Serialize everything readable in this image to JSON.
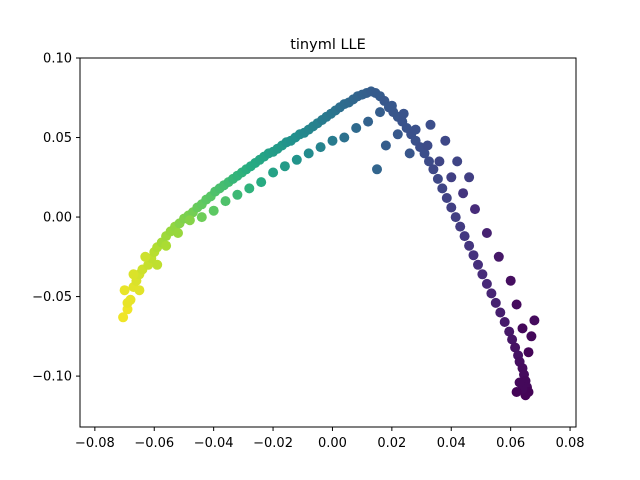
{
  "chart_data": {
    "type": "scatter",
    "title": "tinyml LLE",
    "xlabel": "",
    "ylabel": "",
    "xlim": [
      -0.085,
      0.082
    ],
    "ylim": [
      -0.132,
      0.1
    ],
    "xticks": [
      -0.08,
      -0.06,
      -0.04,
      -0.02,
      0.0,
      0.02,
      0.04,
      0.06,
      0.08
    ],
    "xtick_labels": [
      "−0.08",
      "−0.06",
      "−0.04",
      "−0.02",
      "0.00",
      "0.02",
      "0.04",
      "0.06",
      "0.08"
    ],
    "yticks": [
      0.1,
      0.05,
      0.0,
      -0.05,
      -0.1
    ],
    "ytick_labels": [
      "0.10",
      "0.05",
      "0.00",
      "−0.05",
      "−0.10"
    ],
    "grid": false,
    "legend": "none",
    "colormap": "viridis",
    "x": [
      -0.0705,
      -0.069,
      -0.068,
      -0.07,
      -0.067,
      -0.066,
      -0.065,
      -0.064,
      -0.062,
      -0.061,
      -0.06,
      -0.059,
      -0.0575,
      -0.056,
      -0.0545,
      -0.053,
      -0.0515,
      -0.05,
      -0.0485,
      -0.047,
      -0.0455,
      -0.044,
      -0.0425,
      -0.041,
      -0.0395,
      -0.038,
      -0.0365,
      -0.035,
      -0.0335,
      -0.032,
      -0.0305,
      -0.029,
      -0.0275,
      -0.026,
      -0.0245,
      -0.023,
      -0.0215,
      -0.02,
      -0.0185,
      -0.017,
      -0.0155,
      -0.014,
      -0.0125,
      -0.011,
      -0.0095,
      -0.008,
      -0.0065,
      -0.005,
      -0.0035,
      -0.002,
      -0.0005,
      0.001,
      0.0025,
      0.004,
      0.0055,
      0.007,
      0.0085,
      0.01,
      0.0115,
      0.013,
      0.0145,
      0.016,
      0.0175,
      0.019,
      0.0205,
      0.022,
      0.0235,
      0.025,
      0.0265,
      0.028,
      0.0295,
      0.031,
      0.0325,
      0.034,
      0.0355,
      0.037,
      0.0385,
      0.04,
      0.0415,
      0.043,
      0.0445,
      0.046,
      0.0475,
      0.049,
      0.0505,
      0.052,
      0.0535,
      0.055,
      0.0565,
      0.058,
      0.0595,
      0.0605,
      0.0615,
      0.0625,
      0.063,
      0.064,
      0.0645,
      0.065,
      0.0655,
      0.066,
      0.065,
      0.064,
      0.063,
      0.062,
      -0.069,
      -0.067,
      -0.065,
      -0.063,
      -0.059,
      -0.056,
      -0.052,
      -0.048,
      -0.044,
      -0.04,
      -0.036,
      -0.032,
      -0.028,
      -0.024,
      -0.02,
      -0.016,
      -0.012,
      -0.008,
      -0.004,
      0.0,
      0.004,
      0.008,
      0.012,
      0.016,
      0.02,
      0.024,
      0.028,
      0.032,
      0.036,
      0.04,
      0.044,
      0.048,
      0.052,
      0.056,
      0.06,
      0.062,
      0.064,
      0.066,
      0.067,
      0.068,
      0.015,
      0.018,
      0.022,
      0.026,
      0.033,
      0.038,
      0.042,
      0.046
    ],
    "y": [
      -0.063,
      -0.058,
      -0.052,
      -0.046,
      -0.044,
      -0.04,
      -0.036,
      -0.033,
      -0.03,
      -0.026,
      -0.022,
      -0.019,
      -0.016,
      -0.012,
      -0.009,
      -0.006,
      -0.004,
      -0.001,
      0.001,
      0.003,
      0.006,
      0.008,
      0.011,
      0.013,
      0.016,
      0.018,
      0.02,
      0.022,
      0.024,
      0.026,
      0.028,
      0.03,
      0.032,
      0.034,
      0.036,
      0.038,
      0.04,
      0.041,
      0.043,
      0.045,
      0.047,
      0.048,
      0.05,
      0.052,
      0.053,
      0.055,
      0.057,
      0.059,
      0.061,
      0.063,
      0.065,
      0.067,
      0.069,
      0.071,
      0.072,
      0.074,
      0.076,
      0.077,
      0.078,
      0.079,
      0.078,
      0.076,
      0.073,
      0.069,
      0.066,
      0.063,
      0.06,
      0.056,
      0.052,
      0.048,
      0.044,
      0.04,
      0.035,
      0.03,
      0.024,
      0.018,
      0.012,
      0.006,
      0.0,
      -0.006,
      -0.012,
      -0.018,
      -0.024,
      -0.03,
      -0.036,
      -0.042,
      -0.048,
      -0.054,
      -0.06,
      -0.066,
      -0.072,
      -0.077,
      -0.082,
      -0.087,
      -0.091,
      -0.095,
      -0.099,
      -0.103,
      -0.107,
      -0.11,
      -0.112,
      -0.108,
      -0.104,
      -0.11,
      -0.054,
      -0.036,
      -0.046,
      -0.025,
      -0.03,
      -0.018,
      -0.01,
      -0.002,
      0.0,
      0.004,
      0.01,
      0.014,
      0.018,
      0.022,
      0.028,
      0.032,
      0.036,
      0.04,
      0.044,
      0.048,
      0.05,
      0.056,
      0.06,
      0.066,
      0.07,
      0.065,
      0.055,
      0.045,
      0.035,
      0.025,
      0.015,
      0.005,
      -0.01,
      -0.025,
      -0.04,
      -0.055,
      -0.07,
      -0.085,
      -0.075,
      -0.065,
      0.03,
      0.045,
      0.052,
      0.04,
      0.058,
      0.048,
      0.035,
      0.025
    ],
    "c": [
      0.98,
      0.98,
      0.97,
      0.97,
      0.96,
      0.95,
      0.94,
      0.93,
      0.92,
      0.91,
      0.9,
      0.89,
      0.87,
      0.86,
      0.85,
      0.84,
      0.82,
      0.81,
      0.8,
      0.79,
      0.77,
      0.76,
      0.75,
      0.74,
      0.72,
      0.71,
      0.7,
      0.69,
      0.67,
      0.66,
      0.65,
      0.64,
      0.62,
      0.61,
      0.6,
      0.59,
      0.57,
      0.56,
      0.55,
      0.54,
      0.52,
      0.51,
      0.5,
      0.49,
      0.47,
      0.46,
      0.45,
      0.44,
      0.42,
      0.41,
      0.4,
      0.39,
      0.37,
      0.36,
      0.35,
      0.34,
      0.33,
      0.32,
      0.31,
      0.3,
      0.29,
      0.29,
      0.28,
      0.28,
      0.27,
      0.27,
      0.26,
      0.26,
      0.25,
      0.25,
      0.24,
      0.24,
      0.23,
      0.22,
      0.22,
      0.21,
      0.2,
      0.19,
      0.19,
      0.18,
      0.17,
      0.16,
      0.15,
      0.14,
      0.13,
      0.12,
      0.11,
      0.1,
      0.09,
      0.08,
      0.07,
      0.06,
      0.05,
      0.05,
      0.04,
      0.03,
      0.03,
      0.02,
      0.02,
      0.01,
      0.01,
      0.02,
      0.02,
      0.01,
      0.97,
      0.95,
      0.96,
      0.93,
      0.91,
      0.88,
      0.85,
      0.82,
      0.78,
      0.75,
      0.72,
      0.68,
      0.65,
      0.62,
      0.58,
      0.55,
      0.52,
      0.48,
      0.45,
      0.42,
      0.38,
      0.35,
      0.32,
      0.3,
      0.28,
      0.26,
      0.25,
      0.23,
      0.21,
      0.19,
      0.16,
      0.13,
      0.1,
      0.07,
      0.04,
      0.03,
      0.02,
      0.01,
      0.02,
      0.03,
      0.33,
      0.3,
      0.28,
      0.27,
      0.24,
      0.22,
      0.21,
      0.19
    ]
  }
}
